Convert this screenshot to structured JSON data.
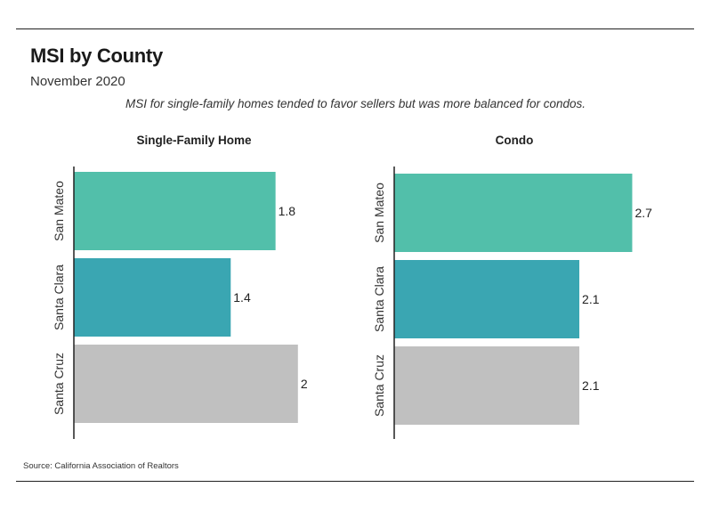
{
  "header": {
    "title": "MSI by County",
    "subtitle": "November 2020",
    "note": "MSI for single-family homes tended to favor sellers but was more balanced for condos."
  },
  "footer": {
    "source": "Source:  California Association of Realtors"
  },
  "colors": {
    "San Mateo": "#52bfaa",
    "Santa Clara": "#3aa6b2",
    "Santa Cruz": "#c0c0c0"
  },
  "chart_data": [
    {
      "type": "bar",
      "orientation": "horizontal",
      "title": "Single-Family Home",
      "categories": [
        "San Mateo",
        "Santa Clara",
        "Santa Cruz"
      ],
      "values": [
        1.8,
        1.4,
        2
      ],
      "value_labels": [
        "1.8",
        "1.4",
        "2"
      ],
      "xlim": [
        0,
        2.2
      ],
      "grid": false
    },
    {
      "type": "bar",
      "orientation": "horizontal",
      "title": "Condo",
      "categories": [
        "San Mateo",
        "Santa Clara",
        "Santa Cruz"
      ],
      "values": [
        2.7,
        2.1,
        2.1
      ],
      "value_labels": [
        "2.7",
        "2.1",
        "2.1"
      ],
      "xlim": [
        0,
        3.2
      ],
      "grid": false
    }
  ]
}
